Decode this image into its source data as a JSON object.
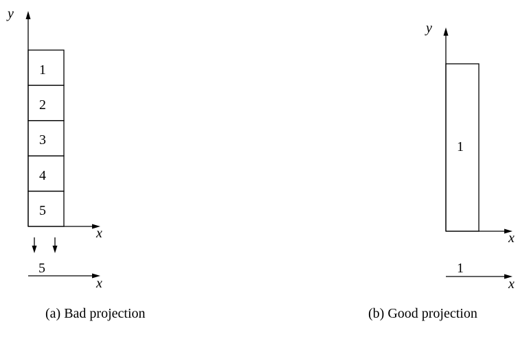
{
  "panel_a": {
    "y_axis": "y",
    "x_axis": "x",
    "stack_labels": [
      "1",
      "2",
      "3",
      "4",
      "5"
    ],
    "projection_label": "5",
    "projection_axis": "x",
    "caption": "(a) Bad projection"
  },
  "panel_b": {
    "y_axis": "y",
    "x_axis": "x",
    "box_label": "1",
    "projection_label": "1",
    "projection_axis": "x",
    "caption": "(b) Good projection"
  }
}
